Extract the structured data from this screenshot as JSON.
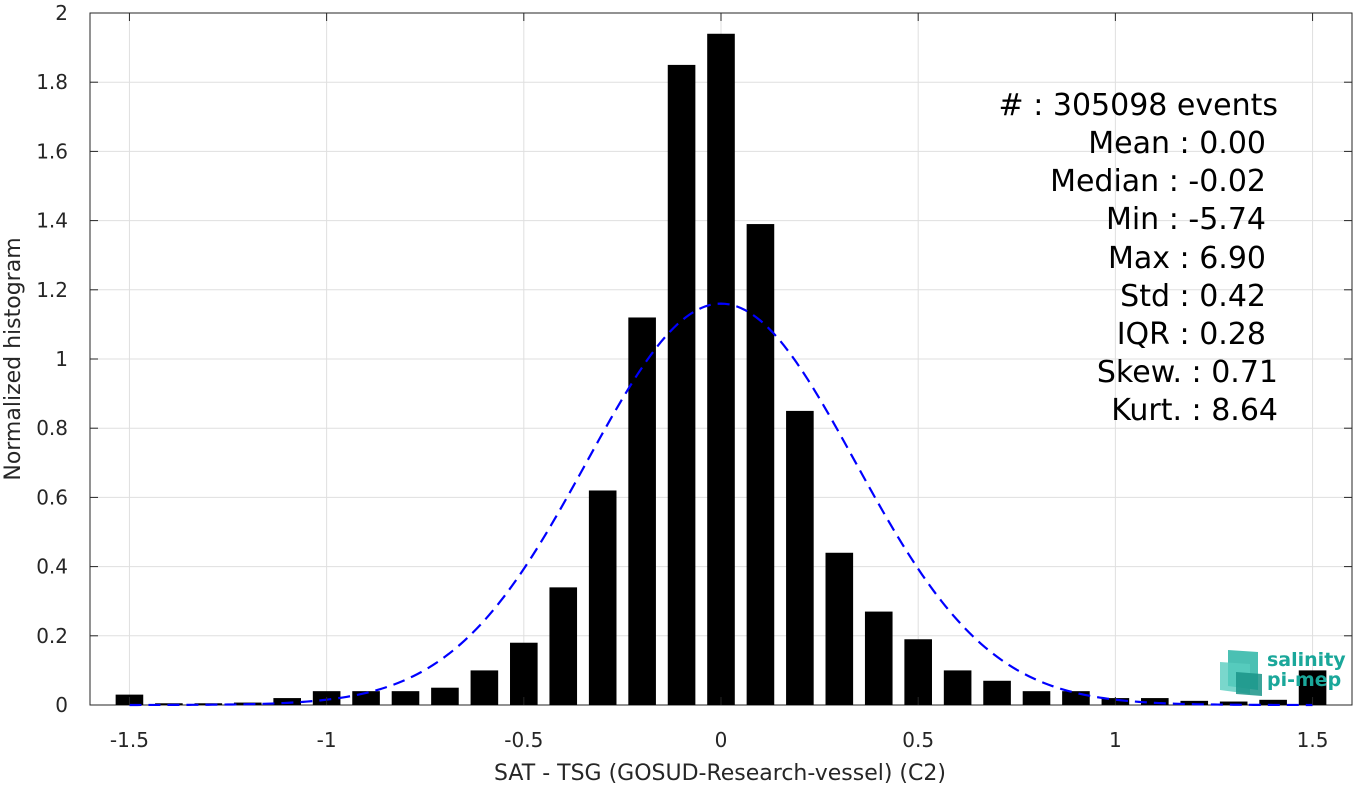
{
  "chart_data": {
    "type": "bar",
    "xlabel": "SAT - TSG (GOSUD-Research-vessel) (C2)",
    "ylabel": "Normalized histogram",
    "xlim": [
      -1.6,
      1.6
    ],
    "ylim": [
      0,
      2
    ],
    "grid": true,
    "x_ticks": [
      -1.5,
      -1,
      -0.5,
      0,
      0.5,
      1,
      1.5
    ],
    "x_tick_labels": [
      "-1.5",
      "-1",
      "-0.5",
      "0",
      "0.5",
      "1",
      "1.5"
    ],
    "y_ticks": [
      0,
      0.2,
      0.4,
      0.6,
      0.8,
      1,
      1.2,
      1.4,
      1.6,
      1.8,
      2
    ],
    "y_tick_labels": [
      "0",
      "0.2",
      "0.4",
      "0.6",
      "0.8",
      "1",
      "1.2",
      "1.4",
      "1.6",
      "1.8",
      "2"
    ],
    "bar_width": 0.07,
    "bars": {
      "x": [
        -1.5,
        -1.4,
        -1.3,
        -1.2,
        -1.1,
        -1.0,
        -0.9,
        -0.8,
        -0.7,
        -0.6,
        -0.5,
        -0.4,
        -0.3,
        -0.2,
        -0.1,
        0.0,
        0.1,
        0.2,
        0.3,
        0.4,
        0.5,
        0.6,
        0.7,
        0.8,
        0.9,
        1.0,
        1.1,
        1.2,
        1.3,
        1.4,
        1.5
      ],
      "values": [
        0.03,
        0.005,
        0.005,
        0.007,
        0.02,
        0.04,
        0.04,
        0.04,
        0.05,
        0.1,
        0.18,
        0.34,
        0.62,
        1.12,
        1.85,
        1.94,
        1.39,
        0.85,
        0.44,
        0.27,
        0.19,
        0.1,
        0.07,
        0.04,
        0.04,
        0.02,
        0.02,
        0.012,
        0.01,
        0.015,
        0.1
      ],
      "color": "#000000"
    },
    "fit_curve": {
      "style": "dashed",
      "color": "#0000ff",
      "mean": 0.0,
      "std": 0.34,
      "peak": 1.16
    },
    "stats": [
      "#  : 305098 events",
      "Mean : 0.00",
      "Median : -0.02",
      "Min : -5.74",
      "Max : 6.90",
      "Std : 0.42",
      "IQR : 0.28",
      "Skew. : 0.71",
      "Kurt. : 8.64"
    ]
  },
  "logo": {
    "line1": "salinity",
    "line2": "pi-mep",
    "color": "#1aa79a"
  }
}
